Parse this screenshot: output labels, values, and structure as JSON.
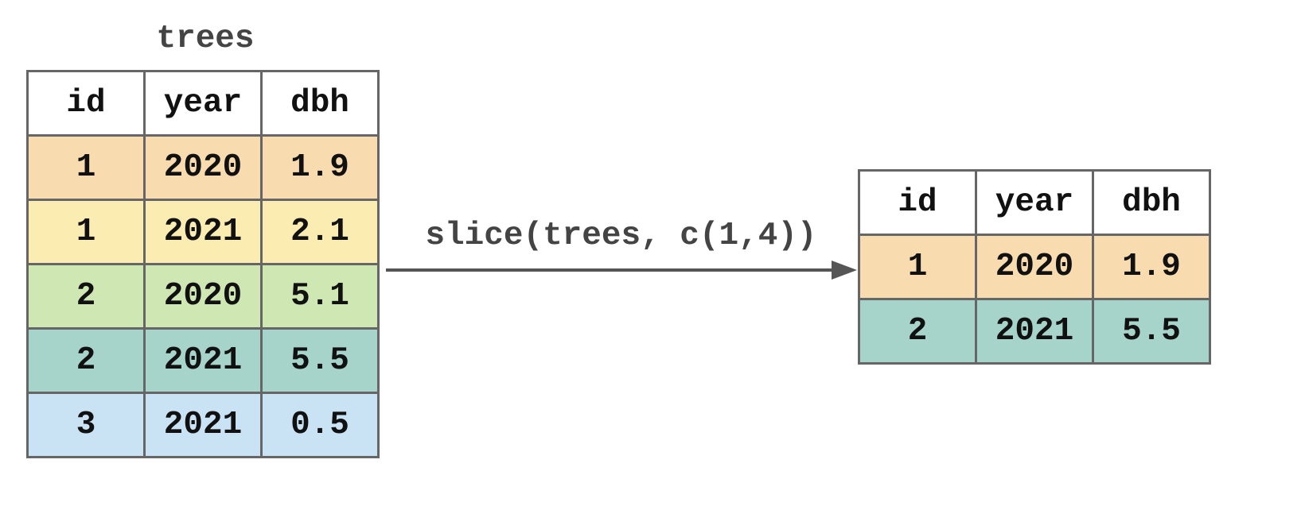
{
  "input_table": {
    "title": "trees",
    "columns": [
      "id",
      "year",
      "dbh"
    ],
    "rows": [
      {
        "cells": [
          "1",
          "2020",
          "1.9"
        ],
        "color": "#f8dcb0"
      },
      {
        "cells": [
          "1",
          "2021",
          "2.1"
        ],
        "color": "#fbecb2"
      },
      {
        "cells": [
          "2",
          "2020",
          "5.1"
        ],
        "color": "#cee7b3"
      },
      {
        "cells": [
          "2",
          "2021",
          "5.5"
        ],
        "color": "#a6d4ca"
      },
      {
        "cells": [
          "3",
          "2021",
          "0.5"
        ],
        "color": "#c9e2f4"
      }
    ]
  },
  "operation": {
    "label": "slice(trees, c(1,4))"
  },
  "output_table": {
    "columns": [
      "id",
      "year",
      "dbh"
    ],
    "rows": [
      {
        "cells": [
          "1",
          "2020",
          "1.9"
        ],
        "color": "#f8dcb0"
      },
      {
        "cells": [
          "2",
          "2021",
          "5.5"
        ],
        "color": "#a6d4ca"
      }
    ]
  },
  "colors": {
    "border": "#666666",
    "arrow": "#555555",
    "header_bg": "#ffffff"
  }
}
